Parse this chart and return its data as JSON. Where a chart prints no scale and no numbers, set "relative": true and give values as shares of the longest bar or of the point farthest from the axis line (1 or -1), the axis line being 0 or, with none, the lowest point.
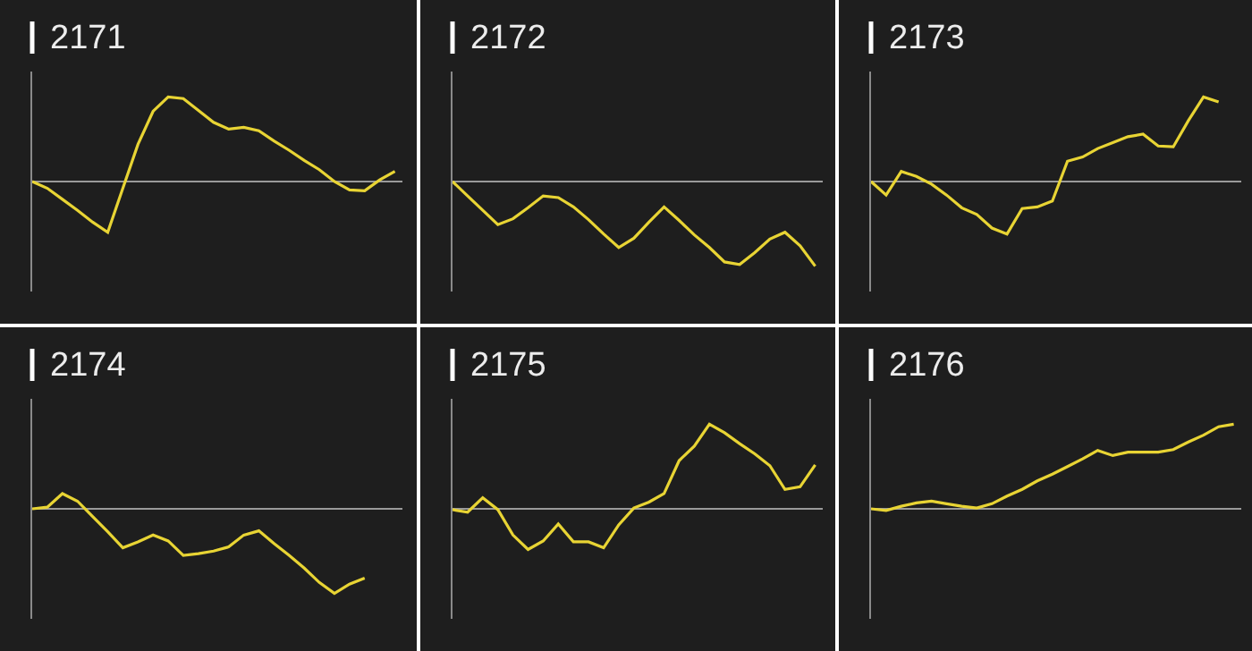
{
  "chart_data": [
    {
      "type": "line",
      "title": "2171",
      "relative": true,
      "categories": [
        null,
        null,
        null,
        null,
        null,
        null,
        null,
        null,
        null,
        null,
        null,
        null,
        null,
        null,
        null,
        null,
        null,
        null,
        null,
        null,
        null,
        null,
        null,
        null,
        null
      ],
      "series": [
        {
          "color": "#e8d434",
          "values": [
            0,
            -0.08,
            -0.21,
            -0.34,
            -0.48,
            -0.6,
            -0.08,
            0.44,
            0.83,
            1,
            0.98,
            0.84,
            0.7,
            0.62,
            0.64,
            0.6,
            0.48,
            0.37,
            0.25,
            0.14,
            0,
            -0.1,
            -0.11,
            0.02,
            0.12
          ]
        }
      ]
    },
    {
      "type": "line",
      "title": "2172",
      "relative": true,
      "categories": [
        null,
        null,
        null,
        null,
        null,
        null,
        null,
        null,
        null,
        null,
        null,
        null,
        null,
        null,
        null,
        null,
        null,
        null,
        null,
        null,
        null,
        null,
        null,
        null,
        null
      ],
      "series": [
        {
          "color": "#e8d434",
          "values": [
            0,
            -0.17,
            -0.34,
            -0.51,
            -0.44,
            -0.31,
            -0.17,
            -0.19,
            -0.3,
            -0.45,
            -0.62,
            -0.78,
            -0.67,
            -0.48,
            -0.3,
            -0.46,
            -0.63,
            -0.78,
            -0.95,
            -0.98,
            -0.84,
            -0.68,
            -0.6,
            -0.76,
            -1
          ]
        }
      ]
    },
    {
      "type": "line",
      "title": "2173",
      "relative": true,
      "categories": [
        null,
        null,
        null,
        null,
        null,
        null,
        null,
        null,
        null,
        null,
        null,
        null,
        null,
        null,
        null,
        null,
        null,
        null,
        null,
        null,
        null,
        null,
        null,
        null
      ],
      "series": [
        {
          "color": "#e8d434",
          "values": [
            0,
            -0.16,
            0.12,
            0.06,
            -0.03,
            -0.16,
            -0.31,
            -0.39,
            -0.55,
            -0.62,
            -0.32,
            -0.3,
            -0.23,
            0.24,
            0.29,
            0.39,
            0.46,
            0.53,
            0.56,
            0.42,
            0.41,
            0.72,
            1,
            0.94
          ]
        }
      ]
    },
    {
      "type": "line",
      "title": "2174",
      "relative": true,
      "categories": [
        null,
        null,
        null,
        null,
        null,
        null,
        null,
        null,
        null,
        null,
        null,
        null,
        null,
        null,
        null,
        null,
        null,
        null,
        null,
        null,
        null,
        null,
        null
      ],
      "series": [
        {
          "color": "#e8d434",
          "values": [
            0,
            0.02,
            0.18,
            0.09,
            -0.09,
            -0.27,
            -0.46,
            -0.39,
            -0.31,
            -0.38,
            -0.55,
            -0.53,
            -0.5,
            -0.45,
            -0.31,
            -0.26,
            -0.41,
            -0.55,
            -0.7,
            -0.87,
            -1,
            -0.89,
            -0.82
          ]
        }
      ]
    },
    {
      "type": "line",
      "title": "2175",
      "relative": true,
      "categories": [
        null,
        null,
        null,
        null,
        null,
        null,
        null,
        null,
        null,
        null,
        null,
        null,
        null,
        null,
        null,
        null,
        null,
        null,
        null,
        null,
        null,
        null,
        null,
        null,
        null
      ],
      "series": [
        {
          "color": "#e8d434",
          "values": [
            -0.01,
            -0.04,
            0.13,
            -0.01,
            -0.31,
            -0.48,
            -0.38,
            -0.18,
            -0.39,
            -0.39,
            -0.46,
            -0.19,
            0.01,
            0.08,
            0.18,
            0.57,
            0.74,
            1,
            0.9,
            0.77,
            0.65,
            0.51,
            0.23,
            0.26,
            0.52
          ]
        }
      ]
    },
    {
      "type": "line",
      "title": "2176",
      "relative": true,
      "categories": [
        null,
        null,
        null,
        null,
        null,
        null,
        null,
        null,
        null,
        null,
        null,
        null,
        null,
        null,
        null,
        null,
        null,
        null,
        null,
        null,
        null,
        null,
        null,
        null,
        null
      ],
      "series": [
        {
          "color": "#e8d434",
          "values": [
            0,
            -0.02,
            0.03,
            0.07,
            0.09,
            0.06,
            0.03,
            0.01,
            0.06,
            0.15,
            0.23,
            0.33,
            0.41,
            0.5,
            0.59,
            0.69,
            0.63,
            0.67,
            0.67,
            0.67,
            0.7,
            0.79,
            0.87,
            0.97,
            1
          ]
        }
      ]
    }
  ]
}
